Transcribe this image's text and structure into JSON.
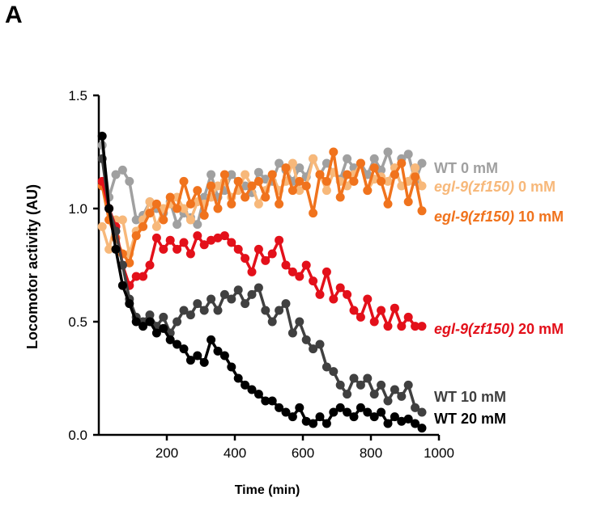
{
  "panel_label": "A",
  "chart_data": {
    "type": "line",
    "title": "",
    "xlabel": "Time (min)",
    "ylabel": "Locomotor activity (AU)",
    "xlim": [
      0,
      1000
    ],
    "ylim": [
      0,
      1.5
    ],
    "xticks": [
      200,
      400,
      600,
      800,
      1000
    ],
    "xtick_labels": [
      "200",
      "400",
      "600",
      "800",
      "1000"
    ],
    "yticks": [
      0,
      0.5,
      1.0,
      1.5
    ],
    "ytick_labels": [
      "0.0",
      "0.5",
      "1.0",
      "1.5"
    ],
    "grid": false,
    "legend": "right, labels beside line ends",
    "x": [
      10,
      30,
      50,
      70,
      90,
      110,
      130,
      150,
      170,
      190,
      210,
      230,
      250,
      270,
      290,
      310,
      330,
      350,
      370,
      390,
      410,
      430,
      450,
      470,
      490,
      510,
      530,
      550,
      570,
      590,
      610,
      630,
      650,
      670,
      690,
      710,
      730,
      750,
      770,
      790,
      810,
      830,
      850,
      870,
      890,
      910,
      930,
      950
    ],
    "series": [
      {
        "name": "WT 0 mM",
        "color": "#a0a0a0",
        "label_parts": [
          {
            "text": "WT 0 mM",
            "italic": false
          }
        ],
        "values": [
          1.28,
          1.05,
          1.15,
          1.17,
          1.12,
          0.95,
          0.97,
          1.03,
          1.0,
          0.98,
          1.03,
          0.93,
          0.98,
          0.96,
          0.93,
          1.05,
          1.15,
          1.05,
          1.08,
          1.15,
          1.12,
          1.1,
          1.07,
          1.16,
          1.13,
          1.12,
          1.2,
          1.17,
          1.12,
          1.18,
          1.14,
          1.22,
          1.15,
          1.2,
          1.16,
          1.13,
          1.22,
          1.18,
          1.2,
          1.15,
          1.22,
          1.17,
          1.25,
          1.15,
          1.22,
          1.24,
          1.12,
          1.2
        ]
      },
      {
        "name": "egl-9(zf150) 0 mM",
        "color": "#f7b87a",
        "label_parts": [
          {
            "text": "egl-9(zf150)",
            "italic": true
          },
          {
            "text": " 0 mM",
            "italic": false
          }
        ],
        "values": [
          0.92,
          0.82,
          0.95,
          0.95,
          0.8,
          0.9,
          0.95,
          1.03,
          0.92,
          1.0,
          1.02,
          1.05,
          1.0,
          0.95,
          1.03,
          1.02,
          1.05,
          1.1,
          1.12,
          1.05,
          1.08,
          1.15,
          1.1,
          1.02,
          1.08,
          1.15,
          1.08,
          1.12,
          1.2,
          1.08,
          1.1,
          1.22,
          1.15,
          1.08,
          1.16,
          1.12,
          1.1,
          1.15,
          1.2,
          1.08,
          1.13,
          1.14,
          1.12,
          1.18,
          1.1,
          1.12,
          1.18,
          1.1
        ]
      },
      {
        "name": "egl-9(zf150) 10 mM",
        "color": "#f0731d",
        "label_parts": [
          {
            "text": "egl-9(zf150)",
            "italic": true
          },
          {
            "text": " 10 mM",
            "italic": false
          }
        ],
        "values": [
          1.1,
          0.95,
          0.87,
          0.8,
          0.76,
          0.88,
          0.92,
          0.98,
          1.02,
          0.95,
          1.05,
          1.0,
          1.12,
          1.02,
          1.08,
          0.97,
          1.1,
          1.0,
          1.15,
          1.02,
          1.12,
          1.05,
          1.1,
          1.12,
          1.05,
          1.15,
          1.02,
          1.18,
          1.08,
          1.12,
          1.1,
          0.98,
          1.15,
          1.12,
          1.25,
          1.05,
          1.15,
          1.12,
          1.2,
          1.08,
          1.18,
          1.12,
          1.02,
          1.15,
          1.2,
          1.03,
          1.14,
          0.99
        ]
      },
      {
        "name": "egl-9(zf150) 20 mM",
        "color": "#e3101a",
        "label_parts": [
          {
            "text": "egl-9(zf150)",
            "italic": true
          },
          {
            "text": " 20 mM",
            "italic": false
          }
        ],
        "values": [
          1.12,
          1.0,
          0.92,
          0.75,
          0.66,
          0.7,
          0.7,
          0.75,
          0.87,
          0.82,
          0.86,
          0.82,
          0.85,
          0.8,
          0.88,
          0.84,
          0.86,
          0.87,
          0.88,
          0.85,
          0.82,
          0.78,
          0.72,
          0.82,
          0.77,
          0.8,
          0.86,
          0.75,
          0.72,
          0.7,
          0.75,
          0.68,
          0.62,
          0.72,
          0.6,
          0.65,
          0.62,
          0.55,
          0.52,
          0.6,
          0.5,
          0.55,
          0.48,
          0.56,
          0.48,
          0.52,
          0.48,
          0.48
        ]
      },
      {
        "name": "WT 10 mM",
        "color": "#404040",
        "label_parts": [
          {
            "text": "WT 10 mM",
            "italic": false
          }
        ],
        "values": [
          1.22,
          1.0,
          0.9,
          0.75,
          0.6,
          0.52,
          0.5,
          0.53,
          0.48,
          0.52,
          0.45,
          0.5,
          0.55,
          0.53,
          0.58,
          0.55,
          0.6,
          0.55,
          0.62,
          0.6,
          0.64,
          0.58,
          0.62,
          0.65,
          0.55,
          0.5,
          0.55,
          0.58,
          0.45,
          0.5,
          0.42,
          0.38,
          0.4,
          0.3,
          0.28,
          0.22,
          0.18,
          0.25,
          0.22,
          0.25,
          0.18,
          0.22,
          0.15,
          0.2,
          0.17,
          0.22,
          0.12,
          0.1
        ]
      },
      {
        "name": "WT 20 mM",
        "color": "#000000",
        "label_parts": [
          {
            "text": "WT 20 mM",
            "italic": false
          }
        ],
        "values": [
          1.32,
          1.0,
          0.82,
          0.66,
          0.58,
          0.5,
          0.48,
          0.5,
          0.45,
          0.47,
          0.42,
          0.4,
          0.38,
          0.33,
          0.35,
          0.32,
          0.42,
          0.37,
          0.35,
          0.3,
          0.25,
          0.22,
          0.2,
          0.18,
          0.15,
          0.15,
          0.12,
          0.1,
          0.08,
          0.12,
          0.06,
          0.05,
          0.08,
          0.05,
          0.1,
          0.12,
          0.1,
          0.08,
          0.12,
          0.1,
          0.08,
          0.1,
          0.05,
          0.08,
          0.06,
          0.07,
          0.05,
          0.03
        ]
      }
    ]
  }
}
